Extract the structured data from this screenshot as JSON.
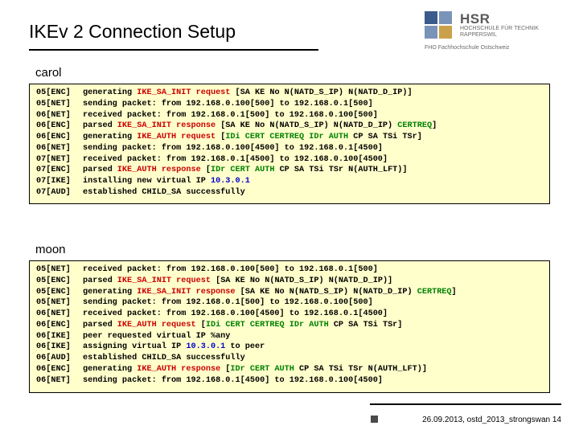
{
  "title": "IKEv 2 Connection Setup",
  "logo": {
    "hsr": "HSR",
    "sub": "HOCHSCHULE FÜR TECHNIK\nRAPPERSWIL",
    "fho": "FHO Fachhochschule Ostschweiz"
  },
  "colors": {
    "hi_red": "#cc0000",
    "hi_green": "#008000",
    "hi_blue": "#0000cc",
    "log_bg": "#ffffcc",
    "text": "#000000"
  },
  "sections": {
    "carol": {
      "label": "carol",
      "lines": [
        {
          "tag": "05[ENC]",
          "parts": [
            {
              "t": "generating "
            },
            {
              "t": "IKE_SA_INIT request",
              "c": "hi_red"
            },
            {
              "t": " [SA KE No N(NATD_S_IP) N(NATD_D_IP)]"
            }
          ]
        },
        {
          "tag": "05[NET]",
          "parts": [
            {
              "t": "sending packet: from 192.168.0.100[500] to 192.168.0.1[500]"
            }
          ]
        },
        {
          "tag": "06[NET]",
          "parts": [
            {
              "t": "received packet: from 192.168.0.1[500] to 192.168.0.100[500]"
            }
          ]
        },
        {
          "tag": "06[ENC]",
          "parts": [
            {
              "t": "parsed "
            },
            {
              "t": "IKE_SA_INIT response",
              "c": "hi_red"
            },
            {
              "t": " [SA KE No N(NATD_S_IP) N(NATD_D_IP) "
            },
            {
              "t": "CERTREQ",
              "c": "hi_green"
            },
            {
              "t": "]"
            }
          ]
        },
        {
          "tag": "06[ENC]",
          "parts": [
            {
              "t": "generating "
            },
            {
              "t": "IKE_AUTH request",
              "c": "hi_red"
            },
            {
              "t": " ["
            },
            {
              "t": "IDi CERT CERTREQ IDr AUTH",
              "c": "hi_green"
            },
            {
              "t": " CP SA TSi TSr]"
            }
          ]
        },
        {
          "tag": "06[NET]",
          "parts": [
            {
              "t": "sending packet: from 192.168.0.100[4500] to 192.168.0.1[4500]"
            }
          ]
        },
        {
          "tag": "07[NET]",
          "parts": [
            {
              "t": "received packet: from 192.168.0.1[4500] to 192.168.0.100[4500]"
            }
          ]
        },
        {
          "tag": "07[ENC]",
          "parts": [
            {
              "t": "parsed "
            },
            {
              "t": "IKE_AUTH response",
              "c": "hi_red"
            },
            {
              "t": " ["
            },
            {
              "t": "IDr CERT AUTH",
              "c": "hi_green"
            },
            {
              "t": " CP SA TSi TSr N(AUTH_LFT)]"
            }
          ]
        },
        {
          "tag": "07[IKE]",
          "parts": [
            {
              "t": "installing new virtual IP "
            },
            {
              "t": "10.3.0.1",
              "c": "hi_blue"
            }
          ]
        },
        {
          "tag": "07[AUD]",
          "parts": [
            {
              "t": "established CHILD_SA successfully"
            }
          ]
        }
      ]
    },
    "moon": {
      "label": "moon",
      "lines": [
        {
          "tag": "05[NET]",
          "parts": [
            {
              "t": "received packet: from 192.168.0.100[500] to 192.168.0.1[500]"
            }
          ]
        },
        {
          "tag": "05[ENC]",
          "parts": [
            {
              "t": "parsed "
            },
            {
              "t": "IKE_SA_INIT request",
              "c": "hi_red"
            },
            {
              "t": " [SA KE No N(NATD_S_IP) N(NATD_D_IP)]"
            }
          ]
        },
        {
          "tag": "05[ENC]",
          "parts": [
            {
              "t": "generating "
            },
            {
              "t": "IKE_SA_INIT response",
              "c": "hi_red"
            },
            {
              "t": " [SA KE No N(NATD_S_IP) N(NATD_D_IP) "
            },
            {
              "t": "CERTREQ",
              "c": "hi_green"
            },
            {
              "t": "]"
            }
          ]
        },
        {
          "tag": "05[NET]",
          "parts": [
            {
              "t": "sending packet: from 192.168.0.1[500] to 192.168.0.100[500]"
            }
          ]
        },
        {
          "tag": "06[NET]",
          "parts": [
            {
              "t": "received packet: from 192.168.0.100[4500] to 192.168.0.1[4500]"
            }
          ]
        },
        {
          "tag": "06[ENC]",
          "parts": [
            {
              "t": "parsed "
            },
            {
              "t": "IKE_AUTH request",
              "c": "hi_red"
            },
            {
              "t": " ["
            },
            {
              "t": "IDi CERT CERTREQ IDr AUTH",
              "c": "hi_green"
            },
            {
              "t": " CP SA TSi TSr]"
            }
          ]
        },
        {
          "tag": "06[IKE]",
          "parts": [
            {
              "t": "peer requested virtual IP %any"
            }
          ]
        },
        {
          "tag": "06[IKE]",
          "parts": [
            {
              "t": "assigning virtual IP "
            },
            {
              "t": "10.3.0.1",
              "c": "hi_blue"
            },
            {
              "t": " to peer"
            }
          ]
        },
        {
          "tag": "06[AUD]",
          "parts": [
            {
              "t": "established CHILD_SA successfully"
            }
          ]
        },
        {
          "tag": "06[ENC]",
          "parts": [
            {
              "t": "generating "
            },
            {
              "t": "IKE_AUTH response",
              "c": "hi_red"
            },
            {
              "t": " ["
            },
            {
              "t": "IDr CERT AUTH",
              "c": "hi_green"
            },
            {
              "t": " CP SA TSi TSr N(AUTH_LFT)]"
            }
          ]
        },
        {
          "tag": "06[NET]",
          "parts": [
            {
              "t": "sending packet: from 192.168.0.1[4500] to 192.168.0.100[4500]"
            }
          ]
        }
      ]
    }
  },
  "footer": "26.09.2013, ostd_2013_strongswan 14"
}
